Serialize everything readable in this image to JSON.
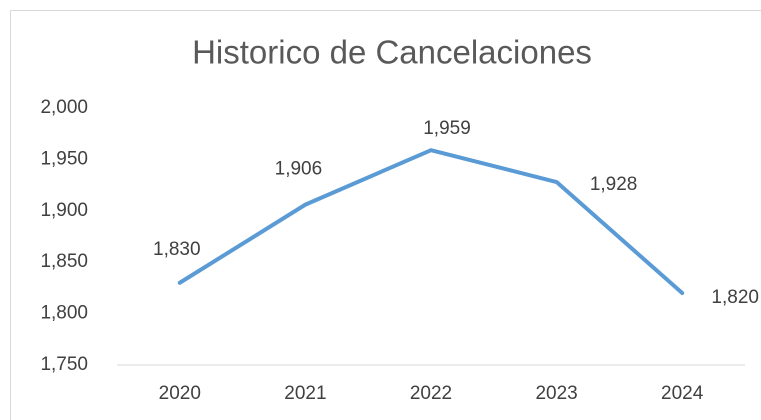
{
  "chart_data": {
    "type": "line",
    "title": "Historico de Cancelaciones",
    "categories": [
      "2020",
      "2021",
      "2022",
      "2023",
      "2024"
    ],
    "series": [
      {
        "color": "#5b9bd5",
        "values": [
          1830,
          1906,
          1959,
          1928,
          1820
        ],
        "value_labels": [
          "1,830",
          "1,906",
          "1,959",
          "1,928",
          "1,820"
        ]
      }
    ],
    "ylim": [
      1750,
      2000
    ],
    "yticks": [
      {
        "value": 1750,
        "label": "1,750"
      },
      {
        "value": 1800,
        "label": "1,800"
      },
      {
        "value": 1850,
        "label": "1,850"
      },
      {
        "value": 1900,
        "label": "1,900"
      },
      {
        "value": 1950,
        "label": "1,950"
      },
      {
        "value": 2000,
        "label": "2,000"
      }
    ],
    "grid": false
  }
}
